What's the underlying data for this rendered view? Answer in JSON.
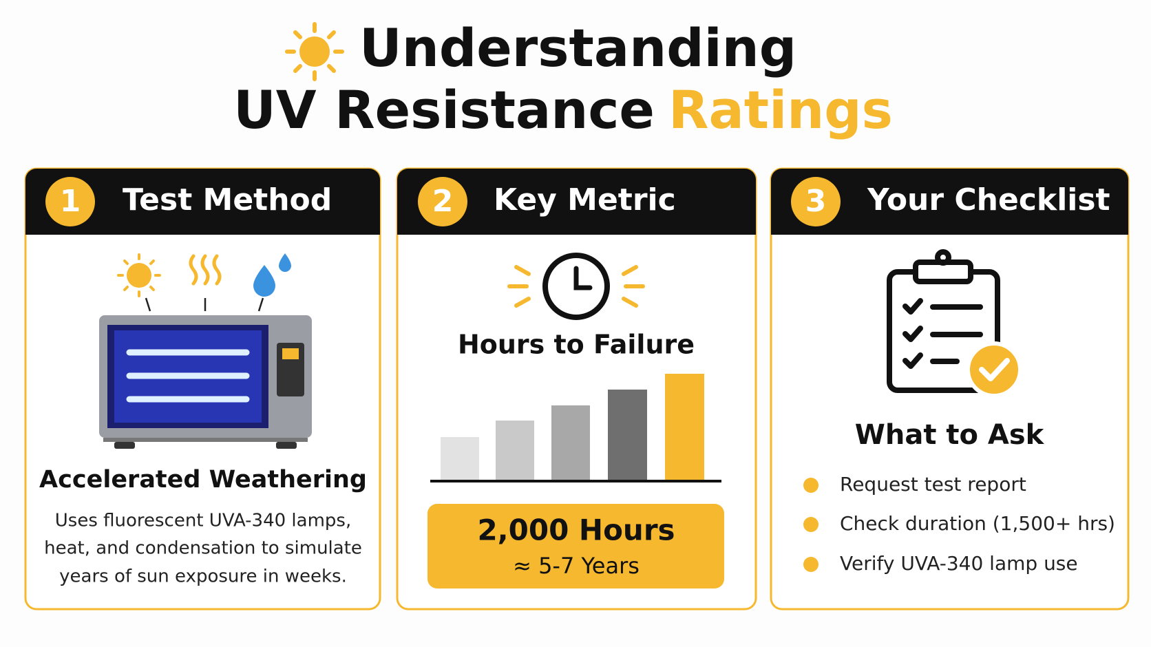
{
  "header": {
    "title_line1": "Understanding",
    "title_line2_part1": "UV Resistance",
    "title_line2_part2": "Ratings"
  },
  "cards": [
    {
      "number": "1",
      "title": "Test Method",
      "subtitle": "Accelerated Weathering",
      "description_lines": [
        "Uses fluorescent UVA-340 lamps,",
        "heat, and condensation to simulate",
        "years of sun exposure in weeks."
      ]
    },
    {
      "number": "2",
      "title": "Key Metric",
      "subtitle": "Hours to Failure",
      "highlight_value": "2,000 Hours",
      "highlight_sub": "≈ 5-7 Years"
    },
    {
      "number": "3",
      "title": "Your Checklist",
      "subtitle": "What to Ask",
      "items": [
        "Request test report",
        "Check duration (1,500+ hrs)",
        "Verify UVA-340 lamp use"
      ]
    }
  ]
}
